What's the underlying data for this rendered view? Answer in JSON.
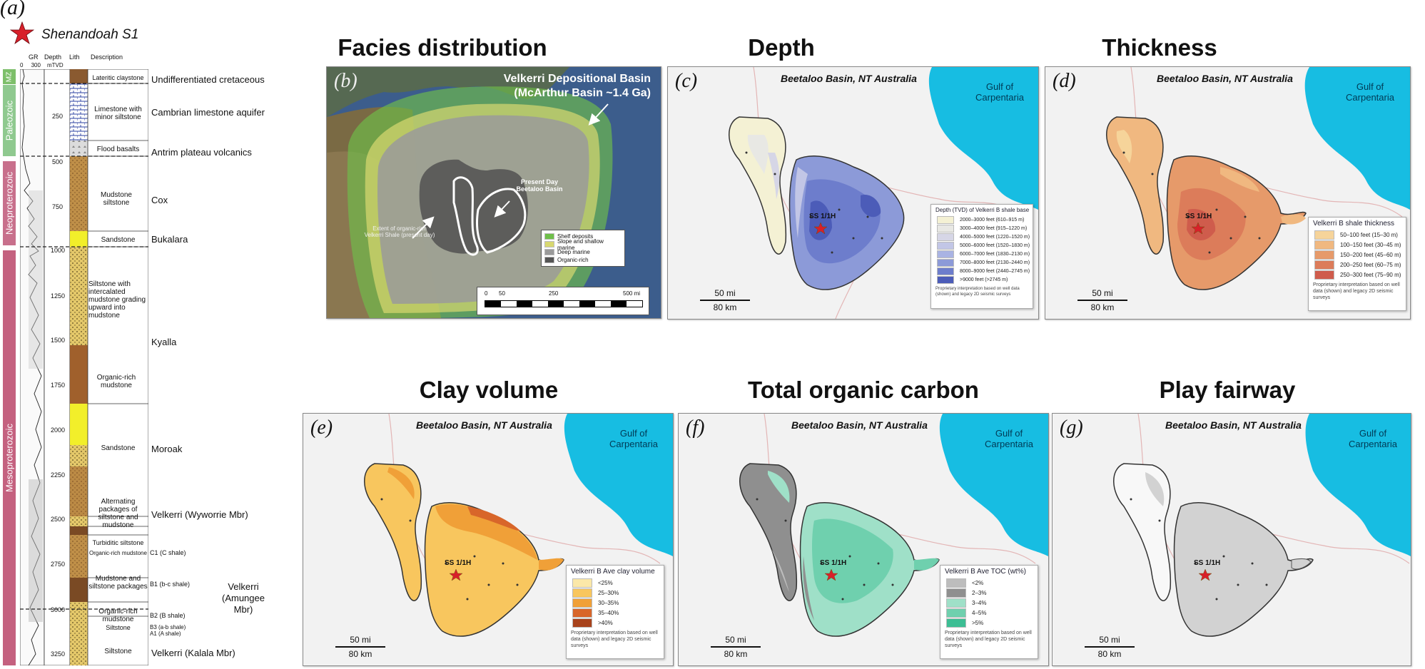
{
  "figure_label": "(a)",
  "well": {
    "name": "Shenandoah S1",
    "short": "SS 1/1H"
  },
  "column_headers": {
    "gr": "GR",
    "gr_scale": "0     300",
    "depth": "Depth",
    "unit": "mTVD",
    "lith": "Lith",
    "description": "Description"
  },
  "eras": [
    {
      "name": "MZ",
      "color": "#7dbf6a"
    },
    {
      "name": "Paleozoic",
      "color": "#8fc98f"
    },
    {
      "name": "Neoproterozoic",
      "color": "#c8708c"
    },
    {
      "name": "Mesoproterozoic",
      "color": "#c4617f"
    }
  ],
  "depth_ticks": [
    "250",
    "500",
    "750",
    "1000",
    "1250",
    "1500",
    "1750",
    "2000",
    "2250",
    "2500",
    "2750",
    "3000",
    "3250"
  ],
  "lith_units": [
    {
      "label": "Lateritic claystone"
    },
    {
      "label": "Limestone with minor siltstone"
    },
    {
      "label": "Flood basalts"
    },
    {
      "label": "Mudstone siltstone"
    },
    {
      "label": "Sandstone"
    },
    {
      "label": "Siltstone with intercalated mudstone grading upward into mudstone"
    },
    {
      "label": "Organic-rich mudstone"
    },
    {
      "label": "Sandstone"
    },
    {
      "label": "Alternating packages of siltstone and mudstone"
    },
    {
      "label": "Turbiditic siltstone"
    },
    {
      "label": "Organic-rich mudstone"
    },
    {
      "label": "Mudstone and siltstone packages"
    },
    {
      "label": "Organic-rich mudstone"
    },
    {
      "label": "Siltstone"
    },
    {
      "label": "Siltstone"
    }
  ],
  "shale_labels": [
    "C1 (C shale)",
    "B1 (b-c shale)",
    "B2 (B shale)",
    "B3 (a-b shale)",
    "A1 (A shale)"
  ],
  "formations": [
    "Undifferentiated cretaceous",
    "Cambrian limestone aquifer",
    "Antrim plateau volcanics",
    "Cox",
    "Bukalara",
    "Kyalla",
    "Moroak",
    "Velkerri (Wyworrie Mbr)",
    "Velkerri (Amungee Mbr)",
    "Velkerri (Kalala Mbr)"
  ],
  "panels": {
    "b": {
      "title": "Facies distribution",
      "label": "(b)",
      "basin_title": "Velkerri Depositional Basin",
      "basin_sub": "(McArthur Basin ~1.4 Ga)",
      "present_day": "Present Day Beetaloo Basin",
      "extent": "Extent of organic-rich Velkerri Shale (present day)",
      "legend": [
        {
          "label": "Shelf deposits",
          "color": "#6fbf4a"
        },
        {
          "label": "Slope and shallow marine",
          "color": "#d8d870"
        },
        {
          "label": "Deep marine",
          "color": "#9a9a9a"
        },
        {
          "label": "Organic-rich",
          "color": "#555555"
        }
      ],
      "scale_ticks": [
        "0",
        "50",
        "250",
        "500 mi"
      ]
    },
    "c": {
      "title": "Depth",
      "label": "(c)",
      "legend_title": "Depth (TVD) of Velkerri B shale base",
      "legend": [
        {
          "label": "2000–3000 feet (610–915 m)",
          "color": "#f4f1d4"
        },
        {
          "label": "3000–4000 feet (915–1220 m)",
          "color": "#e8e8e4"
        },
        {
          "label": "4000–5000 feet (1220–1520 m)",
          "color": "#d6d6e6"
        },
        {
          "label": "5000–6000 feet (1520–1830 m)",
          "color": "#c2c6e6"
        },
        {
          "label": "6000–7000 feet (1830–2130 m)",
          "color": "#a9b3e3"
        },
        {
          "label": "7000–8000 feet (2130–2440 m)",
          "color": "#8c9ad8"
        },
        {
          "label": "8000–9000 feet (2440–2745 m)",
          "color": "#6d7dcc"
        },
        {
          "label": ">9000 feet (>2745 m)",
          "color": "#4c5cb8"
        }
      ]
    },
    "d": {
      "title": "Thickness",
      "label": "(d)",
      "legend_title": "Velkerri B shale thickness",
      "legend": [
        {
          "label": "50–100 feet (15–30 m)",
          "color": "#f6d49a"
        },
        {
          "label": "100–150 feet (30–45 m)",
          "color": "#f0b880"
        },
        {
          "label": "150–200 feet (45–60 m)",
          "color": "#e69a6a"
        },
        {
          "label": "200–250 feet (60–75 m)",
          "color": "#dc7c5a"
        },
        {
          "label": "250–300 feet (75–90 m)",
          "color": "#cf5c4c"
        }
      ]
    },
    "e": {
      "title": "Clay volume",
      "label": "(e)",
      "legend_title": "Velkerri B Ave clay volume",
      "legend": [
        {
          "label": "<25%",
          "color": "#fbe8a8"
        },
        {
          "label": "25–30%",
          "color": "#f8c65e"
        },
        {
          "label": "30–35%",
          "color": "#f0a038"
        },
        {
          "label": "35–40%",
          "color": "#d8662a"
        },
        {
          "label": ">40%",
          "color": "#a8431c"
        }
      ]
    },
    "f": {
      "title": "Total organic carbon",
      "label": "(f)",
      "legend_title": "Velkerri B Ave TOC (wt%)",
      "legend": [
        {
          "label": "<2%",
          "color": "#bdbdbd"
        },
        {
          "label": "2–3%",
          "color": "#8f8f8f"
        },
        {
          "label": "3–4%",
          "color": "#9fe0c8"
        },
        {
          "label": "4–5%",
          "color": "#6fd0ae"
        },
        {
          "label": ">5%",
          "color": "#3dbe94"
        }
      ]
    },
    "g": {
      "title": "Play fairway",
      "label": "(g)"
    }
  },
  "map_common": {
    "basin_name": "Beetaloo Basin, NT Australia",
    "gulf": "Gulf of Carpentaria",
    "scale_mi": "50 mi",
    "scale_km": "80 km",
    "note": "Proprietary interpretation based on well data (shown) and legacy 2D seismic surveys",
    "land_color": "#f2f2f2",
    "sea_color": "#17bde2"
  }
}
